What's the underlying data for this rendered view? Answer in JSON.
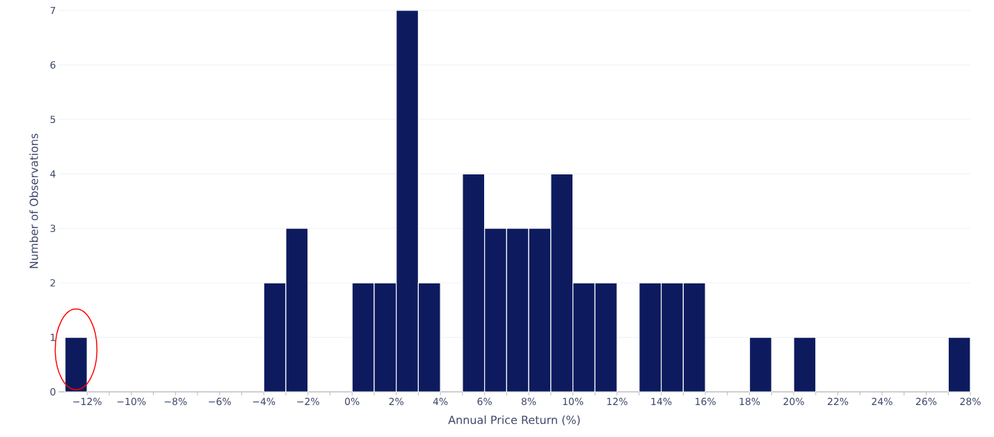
{
  "chart_data": {
    "type": "histogram",
    "xlabel": "Annual Price Return (%)",
    "ylabel": "Number of Observations",
    "bins": [
      -13,
      -12,
      -11,
      -10,
      -9,
      -8,
      -7,
      -6,
      -5,
      -4,
      -3,
      -2,
      -1,
      0,
      1,
      2,
      3,
      4,
      5,
      6,
      7,
      8,
      9,
      10,
      11,
      12,
      13,
      14,
      15,
      16,
      17,
      18,
      19,
      20,
      21,
      22,
      23,
      24,
      25,
      26,
      27,
      28
    ],
    "values": [
      1,
      0,
      0,
      0,
      0,
      0,
      0,
      0,
      0,
      2,
      3,
      0,
      0,
      2,
      2,
      7,
      2,
      0,
      4,
      3,
      3,
      3,
      4,
      2,
      2,
      0,
      2,
      2,
      2,
      0,
      0,
      1,
      0,
      1,
      0,
      0,
      0,
      0,
      0,
      0,
      1
    ],
    "color": "#0d1b5e",
    "xlim": [
      -13.3,
      28
    ],
    "ylim": [
      0,
      7
    ],
    "xticks": [
      {
        "value": -12,
        "label": "−12%"
      },
      {
        "value": -10,
        "label": "−10%"
      },
      {
        "value": -8,
        "label": "−8%"
      },
      {
        "value": -6,
        "label": "−6%"
      },
      {
        "value": -4,
        "label": "−4%"
      },
      {
        "value": -2,
        "label": "−2%"
      },
      {
        "value": 0,
        "label": "0%"
      },
      {
        "value": 2,
        "label": "2%"
      },
      {
        "value": 4,
        "label": "4%"
      },
      {
        "value": 6,
        "label": "6%"
      },
      {
        "value": 8,
        "label": "8%"
      },
      {
        "value": 10,
        "label": "10%"
      },
      {
        "value": 12,
        "label": "12%"
      },
      {
        "value": 14,
        "label": "14%"
      },
      {
        "value": 16,
        "label": "16%"
      },
      {
        "value": 18,
        "label": "18%"
      },
      {
        "value": 20,
        "label": "20%"
      },
      {
        "value": 22,
        "label": "22%"
      },
      {
        "value": 24,
        "label": "24%"
      },
      {
        "value": 26,
        "label": "26%"
      },
      {
        "value": 28,
        "label": "28%"
      }
    ],
    "yticks": [
      0,
      1,
      2,
      3,
      4,
      5,
      6,
      7
    ],
    "grid": "y"
  }
}
